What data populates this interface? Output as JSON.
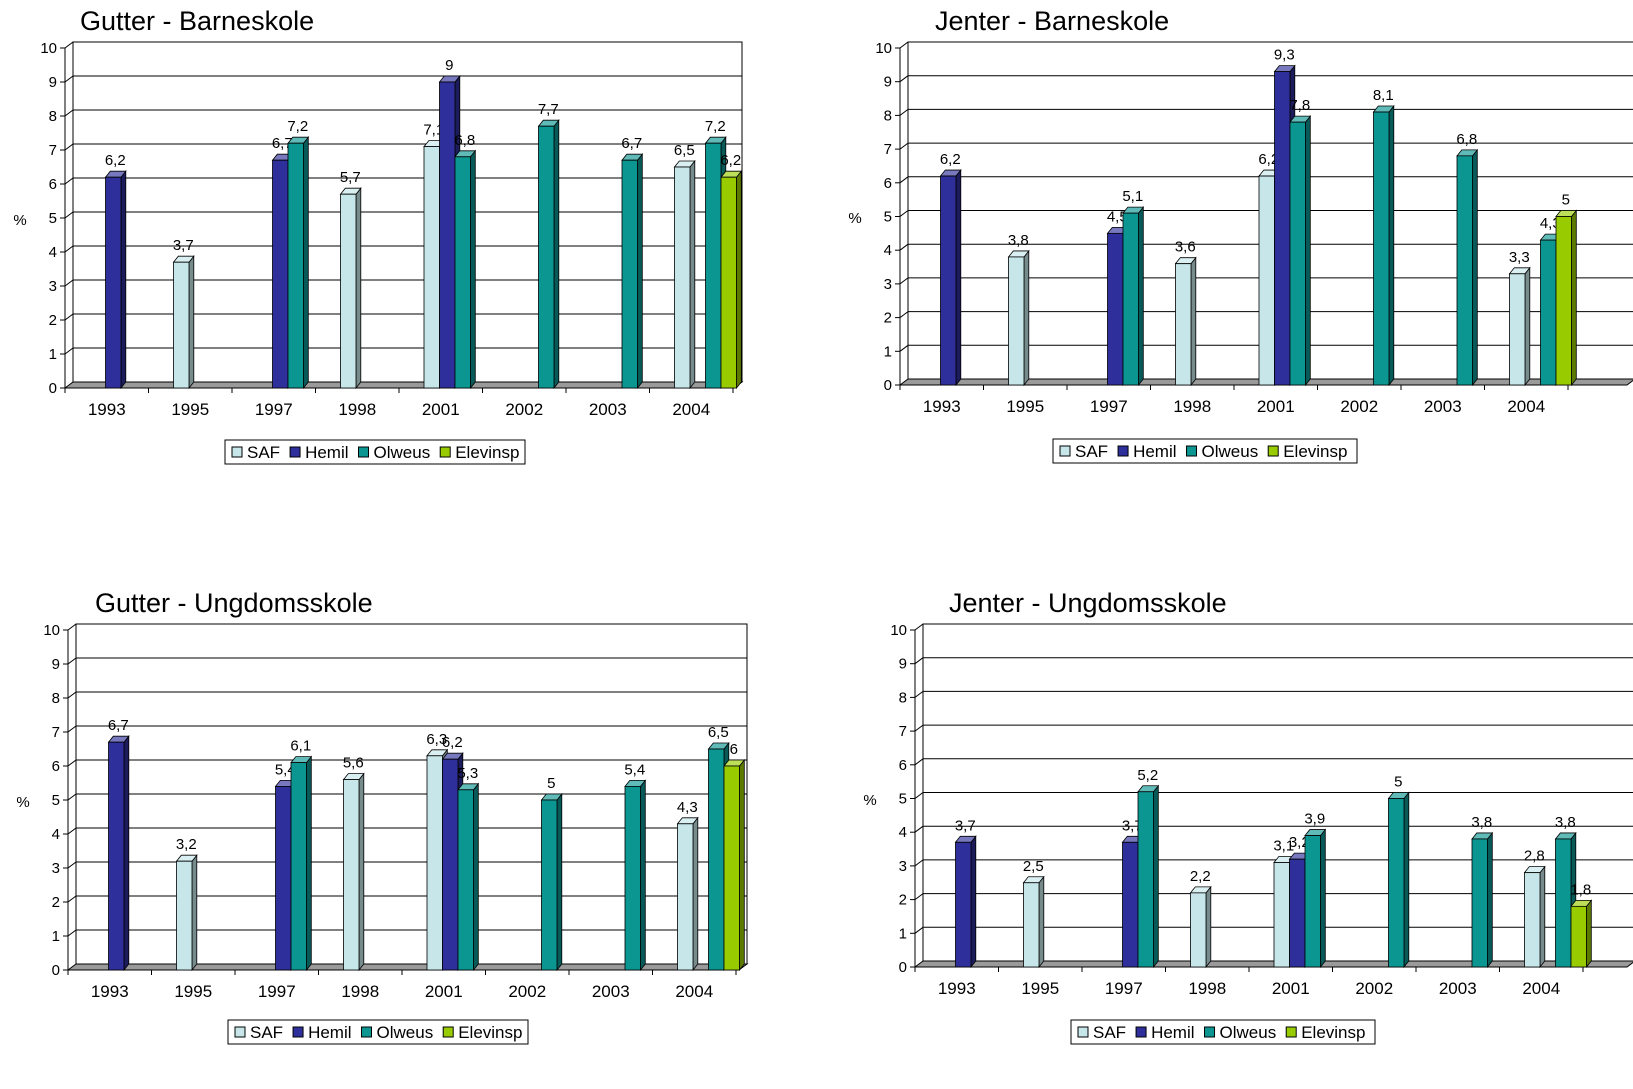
{
  "series_colors": {
    "SAF": "#c6e6ea",
    "Hemil": "#2e2f9a",
    "Olweus": "#0b9692",
    "Elevinsp": "#99cc00"
  },
  "chart_data": [
    {
      "type": "bar",
      "title": "Gutter - Barneskole",
      "ylabel": "%",
      "xlabel": "",
      "ylim": [
        0,
        10
      ],
      "yticks": [
        "0",
        "1",
        "2",
        "3",
        "4",
        "5",
        "6",
        "7",
        "8",
        "9",
        "10"
      ],
      "categories": [
        "1993",
        "1995",
        "1997",
        "1998",
        "2001",
        "2002",
        "2003",
        "2004"
      ],
      "legend": [
        "SAF",
        "Hemil",
        "Olweus",
        "Elevinsp"
      ],
      "legend_position": "bottom",
      "grid": true,
      "series": [
        {
          "name": "SAF",
          "values": [
            null,
            3.7,
            null,
            5.7,
            7.1,
            null,
            null,
            6.5
          ],
          "labels": [
            "",
            "3,7",
            "",
            "5,7",
            "7,1",
            "",
            "",
            "6,5"
          ]
        },
        {
          "name": "Hemil",
          "values": [
            6.2,
            null,
            6.7,
            null,
            9,
            null,
            null,
            null
          ],
          "labels": [
            "6,2",
            "",
            "6,7",
            "",
            "9",
            "",
            "",
            ""
          ]
        },
        {
          "name": "Olweus",
          "values": [
            null,
            null,
            7.2,
            null,
            6.8,
            7.7,
            6.7,
            7.2
          ],
          "labels": [
            "",
            "",
            "7,2",
            "",
            "6,8",
            "7,7",
            "6,7",
            "7,2"
          ]
        },
        {
          "name": "Elevinsp",
          "values": [
            null,
            null,
            null,
            null,
            null,
            null,
            null,
            6.2
          ],
          "labels": [
            "",
            "",
            "",
            "",
            "",
            "",
            "",
            "6,2"
          ]
        }
      ]
    },
    {
      "type": "bar",
      "title": "Jenter - Barneskole",
      "ylabel": "%",
      "xlabel": "",
      "ylim": [
        0,
        10
      ],
      "yticks": [
        "0",
        "1",
        "2",
        "3",
        "4",
        "5",
        "6",
        "7",
        "8",
        "9",
        "10"
      ],
      "categories": [
        "1993",
        "1995",
        "1997",
        "1998",
        "2001",
        "2002",
        "2003",
        "2004"
      ],
      "legend": [
        "SAF",
        "Hemil",
        "Olweus",
        "Elevinsp"
      ],
      "legend_position": "bottom",
      "grid": true,
      "series": [
        {
          "name": "SAF",
          "values": [
            null,
            3.8,
            null,
            3.6,
            6.2,
            null,
            null,
            3.3
          ],
          "labels": [
            "",
            "3,8",
            "",
            "3,6",
            "6,2",
            "",
            "",
            "3,3"
          ]
        },
        {
          "name": "Hemil",
          "values": [
            6.2,
            null,
            4.5,
            null,
            9.3,
            null,
            null,
            null
          ],
          "labels": [
            "6,2",
            "",
            "4,5",
            "",
            "9,3",
            "",
            "",
            ""
          ]
        },
        {
          "name": "Olweus",
          "values": [
            null,
            null,
            5.1,
            null,
            7.8,
            8.1,
            6.8,
            4.3
          ],
          "labels": [
            "",
            "",
            "5,1",
            "",
            "7,8",
            "8,1",
            "6,8",
            "4,3"
          ]
        },
        {
          "name": "Elevinsp",
          "values": [
            null,
            null,
            null,
            null,
            null,
            null,
            null,
            5
          ],
          "labels": [
            "",
            "",
            "",
            "",
            "",
            "",
            "",
            "5"
          ]
        }
      ]
    },
    {
      "type": "bar",
      "title": "Gutter - Ungdomsskole",
      "ylabel": "%",
      "xlabel": "",
      "ylim": [
        0,
        10
      ],
      "yticks": [
        "0",
        "1",
        "2",
        "3",
        "4",
        "5",
        "6",
        "7",
        "8",
        "9",
        "10"
      ],
      "categories": [
        "1993",
        "1995",
        "1997",
        "1998",
        "2001",
        "2002",
        "2003",
        "2004"
      ],
      "legend": [
        "SAF",
        "Hemil",
        "Olweus",
        "Elevinsp"
      ],
      "legend_position": "bottom",
      "grid": true,
      "series": [
        {
          "name": "SAF",
          "values": [
            null,
            3.2,
            null,
            5.6,
            6.3,
            null,
            null,
            4.3
          ],
          "labels": [
            "",
            "3,2",
            "",
            "5,6",
            "6,3",
            "",
            "",
            "4,3"
          ]
        },
        {
          "name": "Hemil",
          "values": [
            6.7,
            null,
            5.4,
            null,
            6.2,
            null,
            null,
            null
          ],
          "labels": [
            "6,7",
            "",
            "5,4",
            "",
            "6,2",
            "",
            "",
            ""
          ]
        },
        {
          "name": "Olweus",
          "values": [
            null,
            null,
            6.1,
            null,
            5.3,
            5,
            5.4,
            6.5
          ],
          "labels": [
            "",
            "",
            "6,1",
            "",
            "5,3",
            "5",
            "5,4",
            "6,5"
          ]
        },
        {
          "name": "Elevinsp",
          "values": [
            null,
            null,
            null,
            null,
            null,
            null,
            null,
            6
          ],
          "labels": [
            "",
            "",
            "",
            "",
            "",
            "",
            "",
            "6"
          ]
        }
      ]
    },
    {
      "type": "bar",
      "title": "Jenter - Ungdomsskole",
      "ylabel": "%",
      "xlabel": "",
      "ylim": [
        0,
        10
      ],
      "yticks": [
        "0",
        "1",
        "2",
        "3",
        "4",
        "5",
        "6",
        "7",
        "8",
        "9",
        "10"
      ],
      "categories": [
        "1993",
        "1995",
        "1997",
        "1998",
        "2001",
        "2002",
        "2003",
        "2004"
      ],
      "legend": [
        "SAF",
        "Hemil",
        "Olweus",
        "Elevinsp"
      ],
      "legend_position": "bottom",
      "grid": true,
      "series": [
        {
          "name": "SAF",
          "values": [
            null,
            2.5,
            null,
            2.2,
            3.1,
            null,
            null,
            2.8
          ],
          "labels": [
            "",
            "2,5",
            "",
            "2,2",
            "3,1",
            "",
            "",
            "2,8"
          ]
        },
        {
          "name": "Hemil",
          "values": [
            3.7,
            null,
            3.7,
            null,
            3.2,
            null,
            null,
            null
          ],
          "labels": [
            "3,7",
            "",
            "3,7",
            "",
            "3,2",
            "",
            "",
            ""
          ]
        },
        {
          "name": "Olweus",
          "values": [
            null,
            null,
            5.2,
            null,
            3.9,
            5,
            3.8,
            3.8
          ],
          "labels": [
            "",
            "",
            "5,2",
            "",
            "3,9",
            "5",
            "3,8",
            "3,8"
          ]
        },
        {
          "name": "Elevinsp",
          "values": [
            null,
            null,
            null,
            null,
            null,
            null,
            null,
            1.8
          ],
          "labels": [
            "",
            "",
            "",
            "",
            "",
            "",
            "",
            "1,8"
          ]
        }
      ]
    }
  ]
}
